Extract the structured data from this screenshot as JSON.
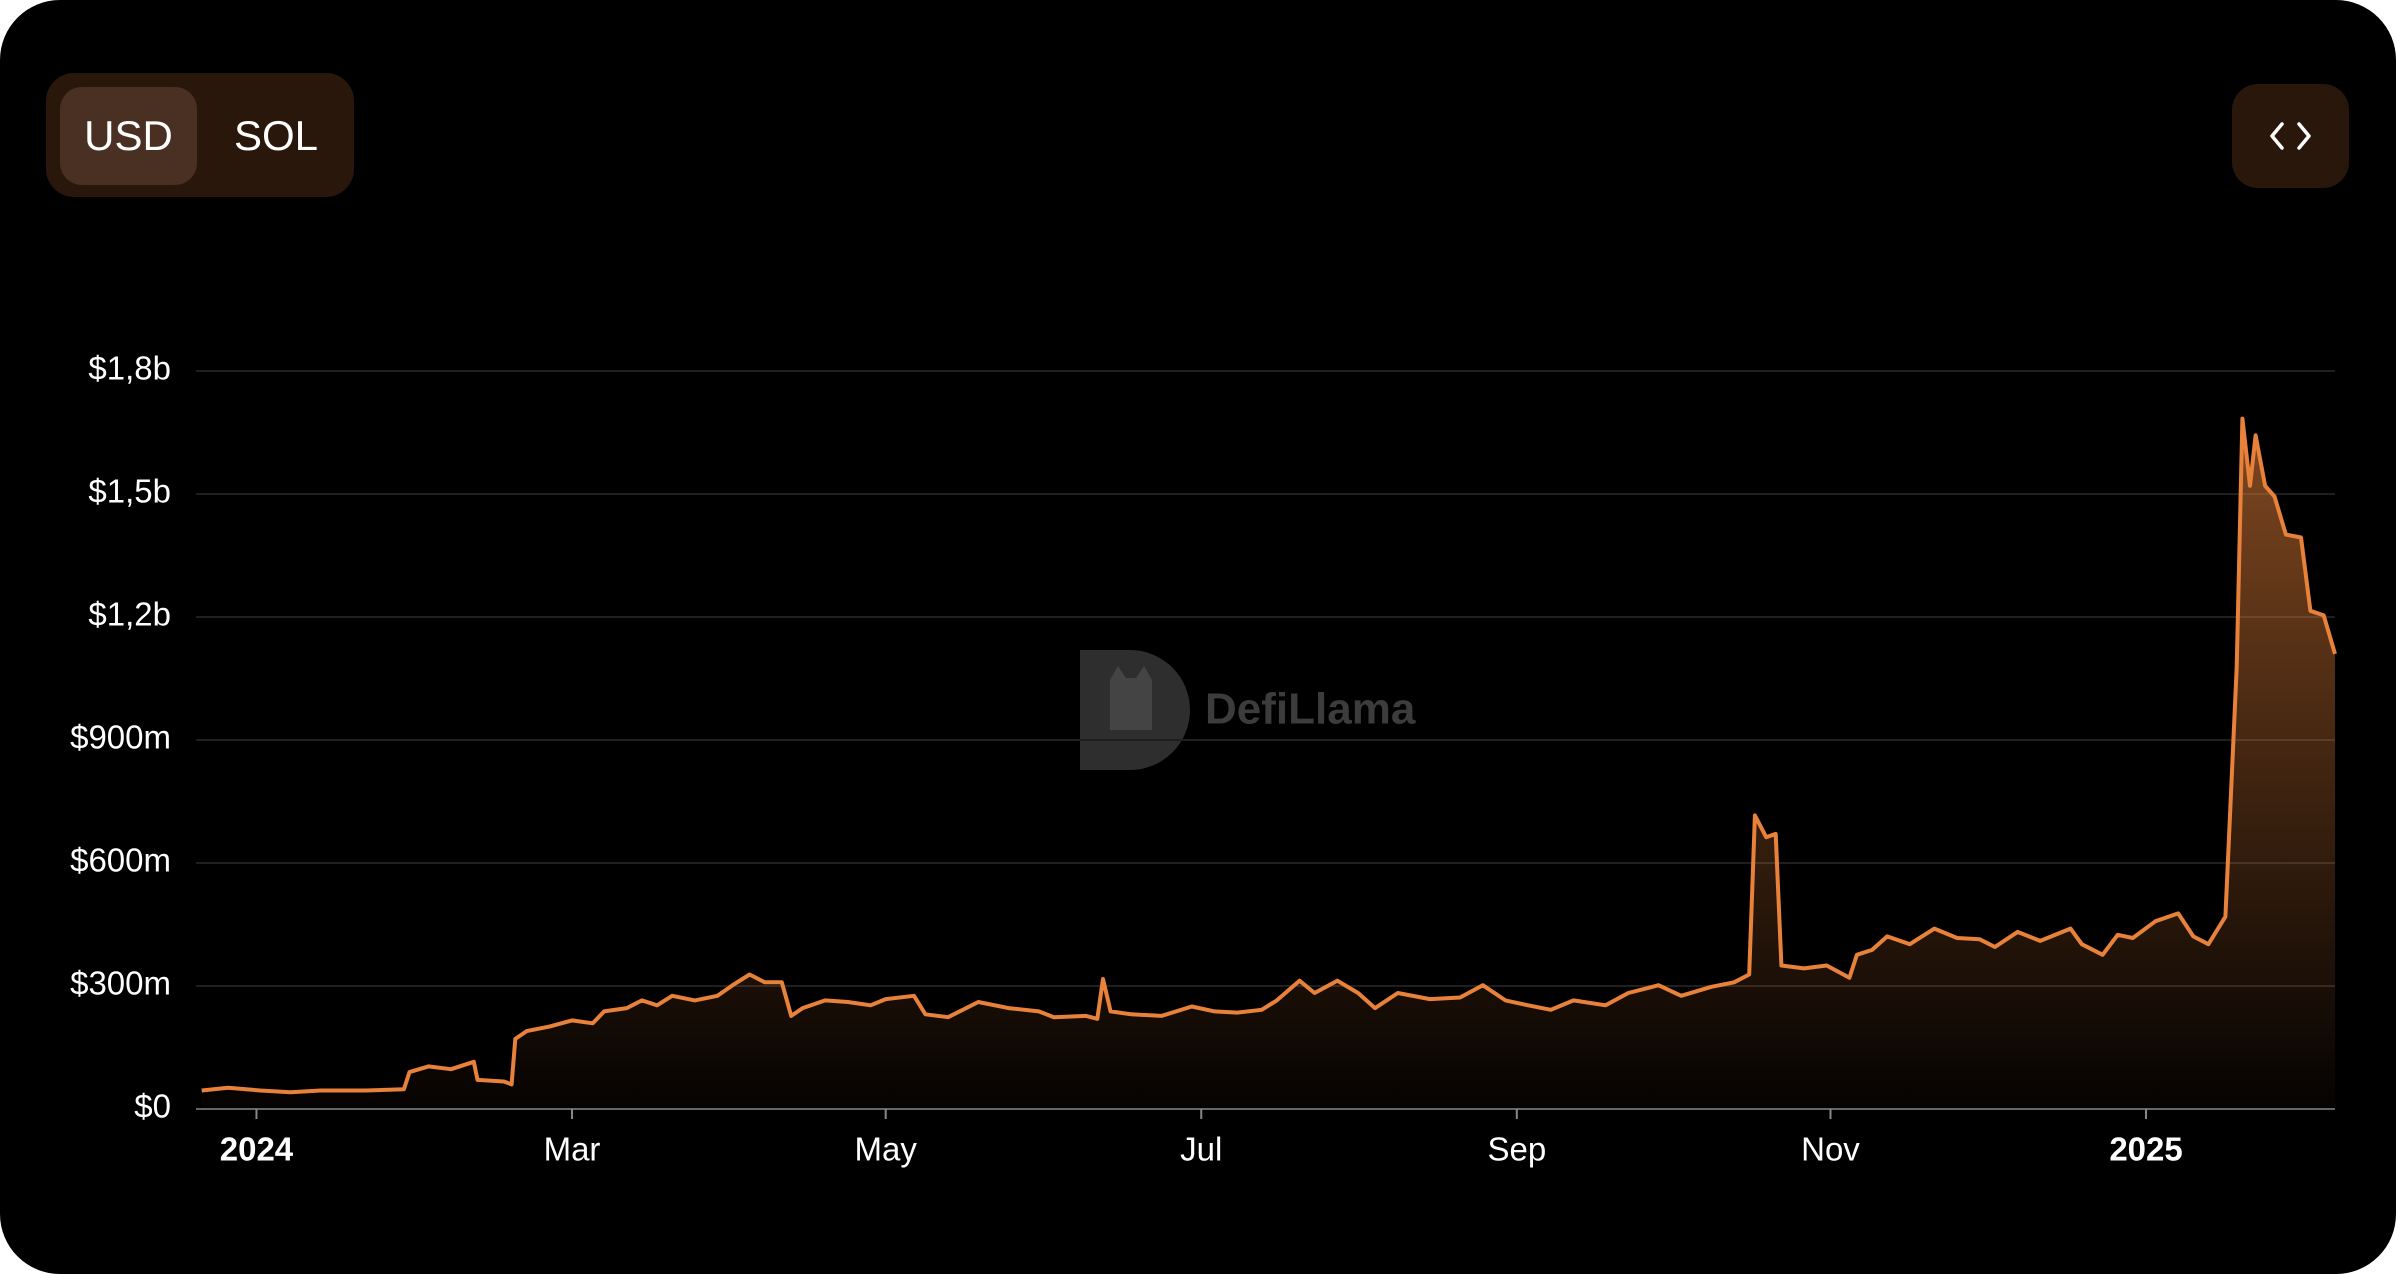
{
  "controls": {
    "currency": [
      "USD",
      "SOL"
    ]
  },
  "watermark": "DefiLlama",
  "chart_data": {
    "type": "area",
    "color": "#e8823a",
    "grid": true,
    "x": [
      2023.971,
      2023.985,
      2024.002,
      2024.018,
      2024.034,
      2024.058,
      2024.078,
      2024.081,
      2024.091,
      2024.103,
      2024.115,
      2024.117,
      2024.131,
      2024.135,
      2024.137,
      2024.143,
      2024.155,
      2024.167,
      2024.178,
      2024.184,
      2024.196,
      2024.204,
      2024.212,
      2024.22,
      2024.232,
      2024.244,
      2024.252,
      2024.261,
      2024.269,
      2024.278,
      2024.283,
      2024.289,
      2024.301,
      2024.313,
      2024.325,
      2024.333,
      2024.348,
      2024.354,
      2024.366,
      2024.382,
      2024.398,
      2024.414,
      2024.422,
      2024.439,
      2024.445,
      2024.448,
      2024.452,
      2024.463,
      2024.479,
      2024.495,
      2024.507,
      2024.519,
      2024.532,
      2024.54,
      2024.552,
      2024.56,
      2024.572,
      2024.583,
      2024.592,
      2024.604,
      2024.621,
      2024.637,
      2024.649,
      2024.661,
      2024.673,
      2024.685,
      2024.697,
      2024.714,
      2024.726,
      2024.742,
      2024.754,
      2024.77,
      2024.782,
      2024.79,
      2024.793,
      2024.799,
      2024.804,
      2024.807,
      2024.819,
      2024.831,
      2024.843,
      2024.847,
      2024.855,
      2024.863,
      2024.875,
      2024.888,
      2024.9,
      2024.912,
      2024.92,
      2024.932,
      2024.944,
      2024.96,
      2024.966,
      2024.977,
      2024.985,
      2024.993,
      2025.005,
      2025.017,
      2025.025,
      2025.033,
      2025.042,
      2025.048,
      2025.051,
      2025.055,
      2025.058,
      2025.063,
      2025.068,
      2025.074,
      2025.082,
      2025.087,
      2025.094,
      2025.1
    ],
    "values": [
      45000000,
      52000000,
      45000000,
      41000000,
      45000000,
      45000000,
      48000000,
      90000000,
      104000000,
      97000000,
      115000000,
      71000000,
      67000000,
      60000000,
      171000000,
      190000000,
      201000000,
      216000000,
      209000000,
      238000000,
      246000000,
      265000000,
      253000000,
      276000000,
      265000000,
      276000000,
      302000000,
      328000000,
      309000000,
      309000000,
      227000000,
      246000000,
      265000000,
      261000000,
      253000000,
      268000000,
      276000000,
      231000000,
      224000000,
      261000000,
      246000000,
      238000000,
      224000000,
      227000000,
      220000000,
      317000000,
      238000000,
      231000000,
      227000000,
      250000000,
      238000000,
      235000000,
      242000000,
      265000000,
      313000000,
      283000000,
      313000000,
      283000000,
      246000000,
      283000000,
      268000000,
      272000000,
      302000000,
      265000000,
      253000000,
      242000000,
      265000000,
      253000000,
      283000000,
      302000000,
      276000000,
      298000000,
      309000000,
      328000000,
      716000000,
      663000000,
      671000000,
      350000000,
      343000000,
      350000000,
      320000000,
      376000000,
      388000000,
      421000000,
      402000000,
      440000000,
      417000000,
      414000000,
      395000000,
      432000000,
      410000000,
      440000000,
      402000000,
      376000000,
      425000000,
      417000000,
      458000000,
      477000000,
      421000000,
      402000000,
      469000000,
      1077000000,
      1684000000,
      1520000000,
      1643000000,
      1520000000,
      1494000000,
      1401000000,
      1394000000,
      1215000000,
      1204000000,
      1110000000
    ],
    "xlim": [
      2023.968,
      2025.1
    ],
    "xticks": [
      2024,
      {
        "value": 2024.167,
        "label": "Mar"
      },
      {
        "value": 2024.333,
        "label": "May"
      },
      {
        "value": 2024.5,
        "label": "Jul"
      },
      {
        "value": 2024.667,
        "label": "Sep"
      },
      {
        "value": 2024.833,
        "label": "Nov"
      },
      2025
    ],
    "ylim": [
      0,
      1800000000
    ],
    "yticks": [
      {
        "value": 0,
        "label": "$0"
      },
      {
        "value": 300000000,
        "label": "$300m"
      },
      {
        "value": 600000000,
        "label": "$600m"
      },
      {
        "value": 900000000,
        "label": "$900m"
      },
      {
        "value": 1200000000,
        "label": "$1,2b"
      },
      {
        "value": 1500000000,
        "label": "$1,5b"
      },
      {
        "value": 1800000000,
        "label": "$1,8b"
      }
    ]
  }
}
